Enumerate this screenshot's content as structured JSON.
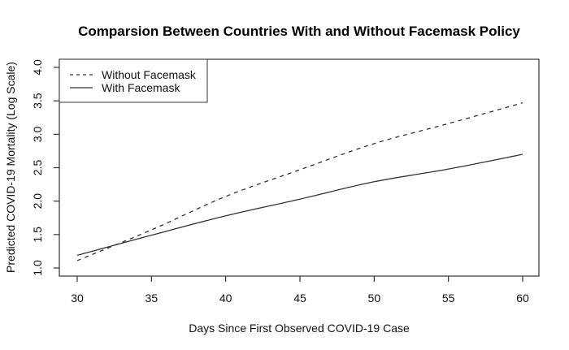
{
  "chart_data": {
    "type": "line",
    "title": "Comparsion Between Countries With and Without Facemask Policy",
    "xlabel": "Days Since First Observed COVID-19 Case",
    "ylabel": "Predicted COVID-19 Mortality (Log Scale)",
    "x": [
      30,
      35,
      40,
      45,
      50,
      55,
      60
    ],
    "xlim": [
      30,
      60
    ],
    "ylim": [
      1.0,
      4.0
    ],
    "x_ticks": [
      "30",
      "35",
      "40",
      "45",
      "50",
      "55",
      "60"
    ],
    "y_ticks": [
      "1.0",
      "1.5",
      "2.0",
      "2.5",
      "3.0",
      "3.5",
      "4.0"
    ],
    "grid": false,
    "legend_position": "top-left",
    "series": [
      {
        "name": "Without Facemask",
        "line_style": "dashed",
        "color": "#333333",
        "values": [
          1.11,
          1.57,
          2.07,
          2.47,
          2.86,
          3.16,
          3.47
        ]
      },
      {
        "name": "With Facemask",
        "line_style": "solid",
        "color": "#333333",
        "values": [
          1.19,
          1.49,
          1.78,
          2.03,
          2.29,
          2.48,
          2.7
        ]
      }
    ]
  },
  "legend": {
    "items": [
      {
        "label": "Without Facemask",
        "style": "dashed"
      },
      {
        "label": "With Facemask",
        "style": "solid"
      }
    ]
  },
  "colors": {
    "axis": "#333333",
    "line": "#333333",
    "background": "#ffffff"
  }
}
